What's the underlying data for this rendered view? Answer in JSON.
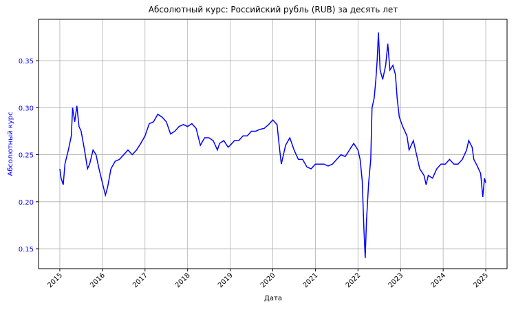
{
  "chart_data": {
    "type": "line",
    "title": "Абсолютный курс: Российский рубль (RUB) за десять лет",
    "x_label": "Дата",
    "y_label": "Абсолютный курс",
    "x": [
      2015.0,
      2015.03,
      2015.08,
      2015.12,
      2015.2,
      2015.27,
      2015.3,
      2015.35,
      2015.4,
      2015.45,
      2015.5,
      2015.58,
      2015.65,
      2015.7,
      2015.78,
      2015.85,
      2015.92,
      2016.0,
      2016.07,
      2016.12,
      2016.2,
      2016.3,
      2016.4,
      2016.5,
      2016.6,
      2016.7,
      2016.8,
      2016.9,
      2017.0,
      2017.1,
      2017.2,
      2017.3,
      2017.4,
      2017.5,
      2017.6,
      2017.7,
      2017.8,
      2017.9,
      2018.0,
      2018.1,
      2018.2,
      2018.3,
      2018.4,
      2018.5,
      2018.6,
      2018.7,
      2018.75,
      2018.85,
      2018.95,
      2019.0,
      2019.1,
      2019.2,
      2019.3,
      2019.4,
      2019.5,
      2019.6,
      2019.7,
      2019.8,
      2019.9,
      2020.0,
      2020.1,
      2020.15,
      2020.2,
      2020.25,
      2020.3,
      2020.4,
      2020.5,
      2020.6,
      2020.7,
      2020.8,
      2020.9,
      2021.0,
      2021.1,
      2021.2,
      2021.3,
      2021.4,
      2021.5,
      2021.6,
      2021.7,
      2021.8,
      2021.9,
      2022.0,
      2022.05,
      2022.1,
      2022.14,
      2022.17,
      2022.2,
      2022.25,
      2022.3,
      2022.33,
      2022.38,
      2022.42,
      2022.45,
      2022.48,
      2022.52,
      2022.58,
      2022.65,
      2022.7,
      2022.75,
      2022.82,
      2022.88,
      2022.92,
      2022.97,
      2023.05,
      2023.15,
      2023.2,
      2023.3,
      2023.35,
      2023.45,
      2023.55,
      2023.6,
      2023.65,
      2023.75,
      2023.85,
      2023.95,
      2024.05,
      2024.15,
      2024.25,
      2024.35,
      2024.45,
      2024.55,
      2024.6,
      2024.68,
      2024.72,
      2024.8,
      2024.88,
      2024.93,
      2024.97,
      2025.0
    ],
    "series": [
      {
        "name": "RUB",
        "color": "#0000ff",
        "values": [
          0.235,
          0.225,
          0.218,
          0.24,
          0.255,
          0.27,
          0.3,
          0.285,
          0.302,
          0.28,
          0.275,
          0.255,
          0.235,
          0.24,
          0.255,
          0.25,
          0.235,
          0.22,
          0.207,
          0.215,
          0.235,
          0.243,
          0.245,
          0.25,
          0.255,
          0.25,
          0.255,
          0.262,
          0.27,
          0.283,
          0.285,
          0.293,
          0.29,
          0.285,
          0.272,
          0.275,
          0.28,
          0.282,
          0.28,
          0.283,
          0.278,
          0.26,
          0.268,
          0.268,
          0.265,
          0.255,
          0.262,
          0.265,
          0.258,
          0.26,
          0.265,
          0.265,
          0.27,
          0.27,
          0.275,
          0.275,
          0.277,
          0.278,
          0.282,
          0.287,
          0.282,
          0.26,
          0.24,
          0.25,
          0.26,
          0.268,
          0.255,
          0.245,
          0.245,
          0.237,
          0.235,
          0.24,
          0.24,
          0.24,
          0.238,
          0.24,
          0.245,
          0.25,
          0.248,
          0.255,
          0.262,
          0.255,
          0.245,
          0.222,
          0.17,
          0.14,
          0.18,
          0.22,
          0.245,
          0.3,
          0.31,
          0.33,
          0.35,
          0.38,
          0.34,
          0.33,
          0.345,
          0.368,
          0.34,
          0.345,
          0.335,
          0.31,
          0.29,
          0.28,
          0.27,
          0.255,
          0.265,
          0.255,
          0.235,
          0.228,
          0.218,
          0.228,
          0.225,
          0.235,
          0.24,
          0.24,
          0.245,
          0.24,
          0.24,
          0.245,
          0.255,
          0.265,
          0.258,
          0.245,
          0.238,
          0.23,
          0.205,
          0.225,
          0.22
        ]
      }
    ],
    "xlim": [
      2014.5,
      2025.5
    ],
    "xticks": [
      2015,
      2016,
      2017,
      2018,
      2019,
      2020,
      2021,
      2022,
      2023,
      2024,
      2025
    ],
    "ylim": [
      0.1288,
      0.394
    ],
    "yticks": [
      {
        "value": 0.15,
        "label": "0.15"
      },
      {
        "value": 0.2,
        "label": "0.20"
      },
      {
        "value": 0.25,
        "label": "0.25"
      },
      {
        "value": 0.3,
        "label": "0.30"
      },
      {
        "value": 0.35,
        "label": "0.35"
      }
    ],
    "y_label_color": "#0000ff",
    "grid": true
  }
}
